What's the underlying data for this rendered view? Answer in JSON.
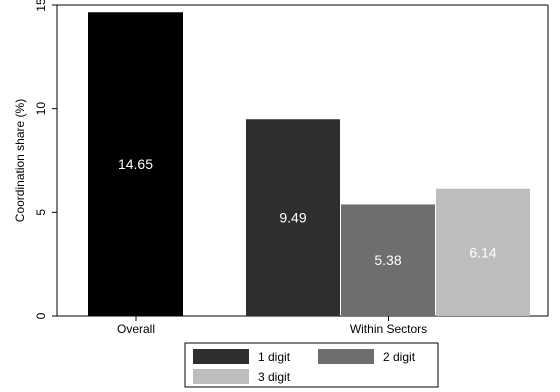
{
  "chart_data": {
    "type": "bar",
    "ylabel": "Coordination share (%)",
    "ylim": [
      0,
      15
    ],
    "yticks": [
      0,
      5,
      10,
      15
    ],
    "groups": [
      {
        "category": "Overall",
        "bars": [
          {
            "label": "14.65",
            "value": 14.65,
            "color": "#000000"
          }
        ]
      },
      {
        "category": "Within Sectors",
        "bars": [
          {
            "label": "9.49",
            "value": 9.49,
            "color": "#2e2e2e"
          },
          {
            "label": "5.38",
            "value": 5.38,
            "color": "#6e6e6e"
          },
          {
            "label": "6.14",
            "value": 6.14,
            "color": "#bdbdbd"
          }
        ]
      }
    ],
    "legend": [
      {
        "label": "1 digit",
        "color": "#2e2e2e"
      },
      {
        "label": "2 digit",
        "color": "#6e6e6e"
      },
      {
        "label": "3 digit",
        "color": "#bdbdbd"
      }
    ],
    "legend_position": "bottom"
  }
}
